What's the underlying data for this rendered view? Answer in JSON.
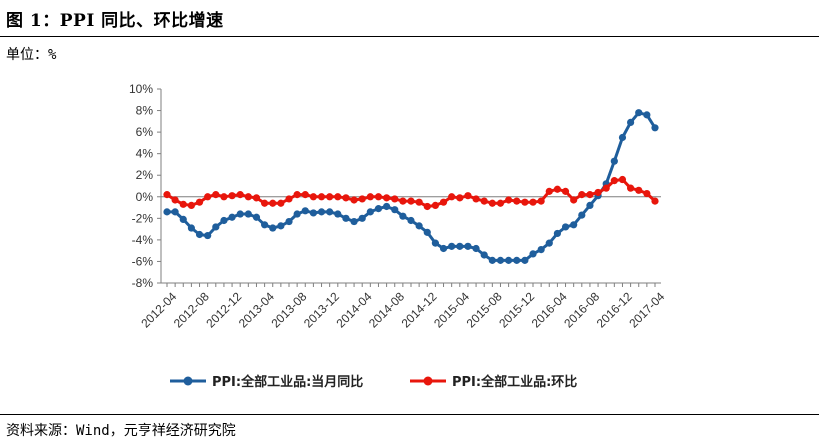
{
  "header": {
    "title": "图 1：PPI 同比、环比增速",
    "unit": "单位：%"
  },
  "footer": {
    "source": "资料来源：Wind，元亨祥经济研究院"
  },
  "colors": {
    "yoy": "#1f5e9c",
    "mom": "#e8160c",
    "axis": "#7f7f7f"
  },
  "chart_data": {
    "type": "line",
    "title": "",
    "xlabel": "",
    "ylabel": "",
    "ylim": [
      -8,
      10
    ],
    "yticks": [
      "10%",
      "8%",
      "6%",
      "4%",
      "2%",
      "0%",
      "-2%",
      "-4%",
      "-6%",
      "-8%"
    ],
    "x_tick_labels": [
      "2012-04",
      "2012-08",
      "2012-12",
      "2013-04",
      "2013-08",
      "2013-12",
      "2014-04",
      "2014-08",
      "2014-12",
      "2015-04",
      "2015-08",
      "2015-12",
      "2016-04",
      "2016-08",
      "2016-12",
      "2017-04"
    ],
    "x": [
      "2012-04",
      "2012-05",
      "2012-06",
      "2012-07",
      "2012-08",
      "2012-09",
      "2012-10",
      "2012-11",
      "2012-12",
      "2013-01",
      "2013-02",
      "2013-03",
      "2013-04",
      "2013-05",
      "2013-06",
      "2013-07",
      "2013-08",
      "2013-09",
      "2013-10",
      "2013-11",
      "2013-12",
      "2014-01",
      "2014-02",
      "2014-03",
      "2014-04",
      "2014-05",
      "2014-06",
      "2014-07",
      "2014-08",
      "2014-09",
      "2014-10",
      "2014-11",
      "2014-12",
      "2015-01",
      "2015-02",
      "2015-03",
      "2015-04",
      "2015-05",
      "2015-06",
      "2015-07",
      "2015-08",
      "2015-09",
      "2015-10",
      "2015-11",
      "2015-12",
      "2016-01",
      "2016-02",
      "2016-03",
      "2016-04",
      "2016-05",
      "2016-06",
      "2016-07",
      "2016-08",
      "2016-09",
      "2016-10",
      "2016-11",
      "2016-12",
      "2017-01",
      "2017-02",
      "2017-03",
      "2017-04"
    ],
    "legend_position": "bottom",
    "grid": false,
    "series": [
      {
        "name": "PPI:全部工业品:当月同比",
        "color": "#1f5e9c",
        "values": [
          -1.4,
          -1.4,
          -2.1,
          -2.9,
          -3.5,
          -3.6,
          -2.8,
          -2.2,
          -1.9,
          -1.6,
          -1.6,
          -1.9,
          -2.6,
          -2.9,
          -2.7,
          -2.3,
          -1.6,
          -1.3,
          -1.5,
          -1.4,
          -1.4,
          -1.6,
          -2.0,
          -2.3,
          -2.0,
          -1.4,
          -1.1,
          -0.9,
          -1.2,
          -1.8,
          -2.2,
          -2.7,
          -3.3,
          -4.3,
          -4.8,
          -4.6,
          -4.6,
          -4.6,
          -4.8,
          -5.4,
          -5.9,
          -5.9,
          -5.9,
          -5.9,
          -5.9,
          -5.3,
          -4.9,
          -4.3,
          -3.4,
          -2.8,
          -2.6,
          -1.7,
          -0.8,
          0.1,
          1.2,
          3.3,
          5.5,
          6.9,
          7.8,
          7.6,
          6.4
        ]
      },
      {
        "name": "PPI:全部工业品:环比",
        "color": "#e8160c",
        "values": [
          0.2,
          -0.3,
          -0.7,
          -0.8,
          -0.5,
          0.0,
          0.2,
          0.0,
          0.1,
          0.2,
          0.0,
          -0.1,
          -0.6,
          -0.6,
          -0.6,
          -0.2,
          0.2,
          0.2,
          0.0,
          0.0,
          0.0,
          0.0,
          -0.1,
          -0.3,
          -0.2,
          0.0,
          0.0,
          -0.1,
          -0.2,
          -0.4,
          -0.4,
          -0.5,
          -0.9,
          -0.8,
          -0.5,
          0.0,
          -0.1,
          0.1,
          -0.2,
          -0.4,
          -0.6,
          -0.6,
          -0.3,
          -0.4,
          -0.5,
          -0.5,
          -0.4,
          0.5,
          0.7,
          0.5,
          -0.3,
          0.2,
          0.2,
          0.4,
          0.8,
          1.5,
          1.6,
          0.8,
          0.6,
          0.3,
          -0.4
        ]
      }
    ]
  }
}
